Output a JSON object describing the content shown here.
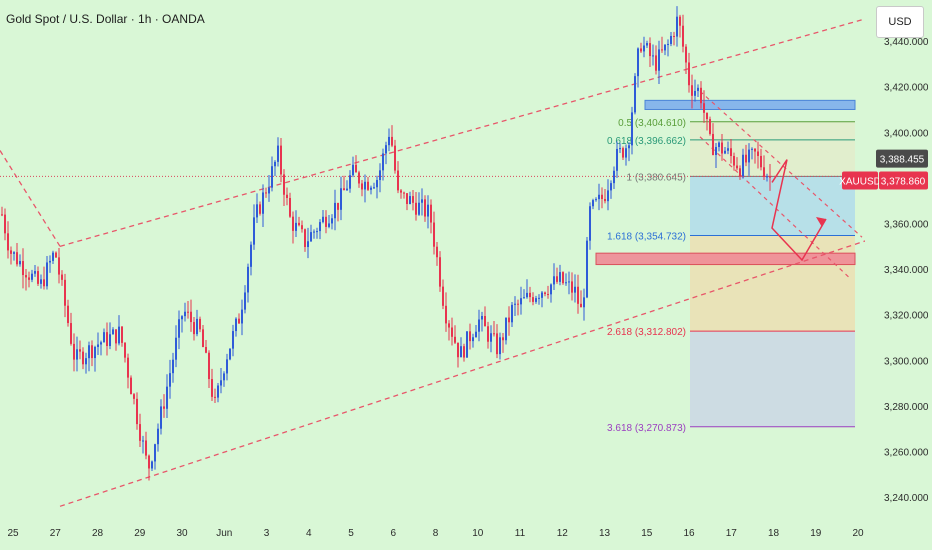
{
  "header": {
    "title": "Gold Spot / U.S. Dollar · 1h · OANDA",
    "currency": "USD"
  },
  "colors": {
    "background": "#d9f7d6",
    "up_candle": "#2f5bd8",
    "down_candle": "#e8344f",
    "channel_line": "#e8566a",
    "annotation_arrow": "#e8344f",
    "blue_zone": "#7fb0ee",
    "red_zone": "#f08b96"
  },
  "chart_data": {
    "type": "candlestick",
    "symbol": "XAUUSD",
    "timeframe": "1h",
    "x_tick_labels": [
      "25",
      "27",
      "28",
      "29",
      "30",
      "Jun",
      "3",
      "4",
      "5",
      "6",
      "8",
      "10",
      "11",
      "12",
      "13",
      "15",
      "16",
      "17",
      "18",
      "19",
      "20"
    ],
    "ylim": [
      3230,
      3458
    ],
    "y_ticks": [
      3240,
      3260,
      3280,
      3300,
      3320,
      3340,
      3360,
      3380,
      3400,
      3420,
      3440
    ],
    "y_tick_labels": [
      "3,240.000",
      "3,260.000",
      "3,280.000",
      "3,300.000",
      "3,320.000",
      "3,340.000",
      "3,360.000",
      "3,380.000",
      "3,400.000",
      "3,420.000",
      "3,440.000"
    ],
    "price_path": [
      [
        0,
        3368
      ],
      [
        10,
        3348
      ],
      [
        22,
        3342
      ],
      [
        40,
        3332
      ],
      [
        55,
        3348
      ],
      [
        75,
        3300
      ],
      [
        100,
        3308
      ],
      [
        120,
        3312
      ],
      [
        148,
        3252
      ],
      [
        162,
        3278
      ],
      [
        183,
        3322
      ],
      [
        200,
        3312
      ],
      [
        215,
        3280
      ],
      [
        225,
        3300
      ],
      [
        240,
        3320
      ],
      [
        255,
        3362
      ],
      [
        270,
        3380
      ],
      [
        278,
        3390
      ],
      [
        290,
        3362
      ],
      [
        305,
        3352
      ],
      [
        320,
        3360
      ],
      [
        340,
        3370
      ],
      [
        352,
        3382
      ],
      [
        365,
        3378
      ],
      [
        378,
        3380
      ],
      [
        390,
        3402
      ],
      [
        398,
        3372
      ],
      [
        410,
        3370
      ],
      [
        430,
        3364
      ],
      [
        445,
        3322
      ],
      [
        460,
        3302
      ],
      [
        478,
        3318
      ],
      [
        498,
        3305
      ],
      [
        512,
        3322
      ],
      [
        530,
        3328
      ],
      [
        545,
        3332
      ],
      [
        560,
        3335
      ],
      [
        575,
        3330
      ],
      [
        582,
        3320
      ],
      [
        590,
        3365
      ],
      [
        604,
        3372
      ],
      [
        615,
        3388
      ],
      [
        628,
        3395
      ],
      [
        640,
        3440
      ],
      [
        655,
        3430
      ],
      [
        668,
        3438
      ],
      [
        678,
        3450
      ],
      [
        690,
        3420
      ],
      [
        700,
        3418
      ],
      [
        710,
        3395
      ],
      [
        725,
        3392
      ],
      [
        740,
        3385
      ],
      [
        755,
        3390
      ],
      [
        770,
        3380
      ]
    ],
    "current_price_label": "3,388.455",
    "last_price": {
      "symbol": "XAUUSD",
      "label": "3,378.860"
    },
    "fibonacci_levels": [
      {
        "ratio": "0.5",
        "value": 3404.61,
        "label": "0.5 (3,404.610)",
        "color": "#5a9e3a"
      },
      {
        "ratio": "0.618",
        "value": 3396.662,
        "label": "0.618 (3,396.662)",
        "color": "#2a9a78"
      },
      {
        "ratio": "1",
        "value": 3380.645,
        "label": "1 (3,380.645)",
        "color": "#777777"
      },
      {
        "ratio": "1.618",
        "value": 3354.732,
        "label": "1.618 (3,354.732)",
        "color": "#2b6fd6"
      },
      {
        "ratio": "2.618",
        "value": 3312.802,
        "label": "2.618 (3,312.802)",
        "color": "#e8344f"
      },
      {
        "ratio": "3.618",
        "value": 3270.873,
        "label": "3.618 (3,270.873)",
        "color": "#9b3fc0"
      }
    ],
    "zones": [
      {
        "name": "resistance",
        "low": 3410,
        "high": 3414,
        "color": "#7fb0ee"
      },
      {
        "name": "support",
        "low": 3342,
        "high": 3347,
        "color": "#f08b96"
      }
    ],
    "channels": [
      {
        "name": "upper",
        "from": [
          60,
          3350
        ],
        "to": [
          932,
          3458
        ]
      },
      {
        "name": "lower",
        "from": [
          60,
          3236
        ],
        "to": [
          932,
          3362
        ]
      },
      {
        "name": "upper-left-extension",
        "from": [
          0,
          3392
        ],
        "to": [
          60,
          3350
        ]
      }
    ],
    "grid": false,
    "legend": "none"
  }
}
